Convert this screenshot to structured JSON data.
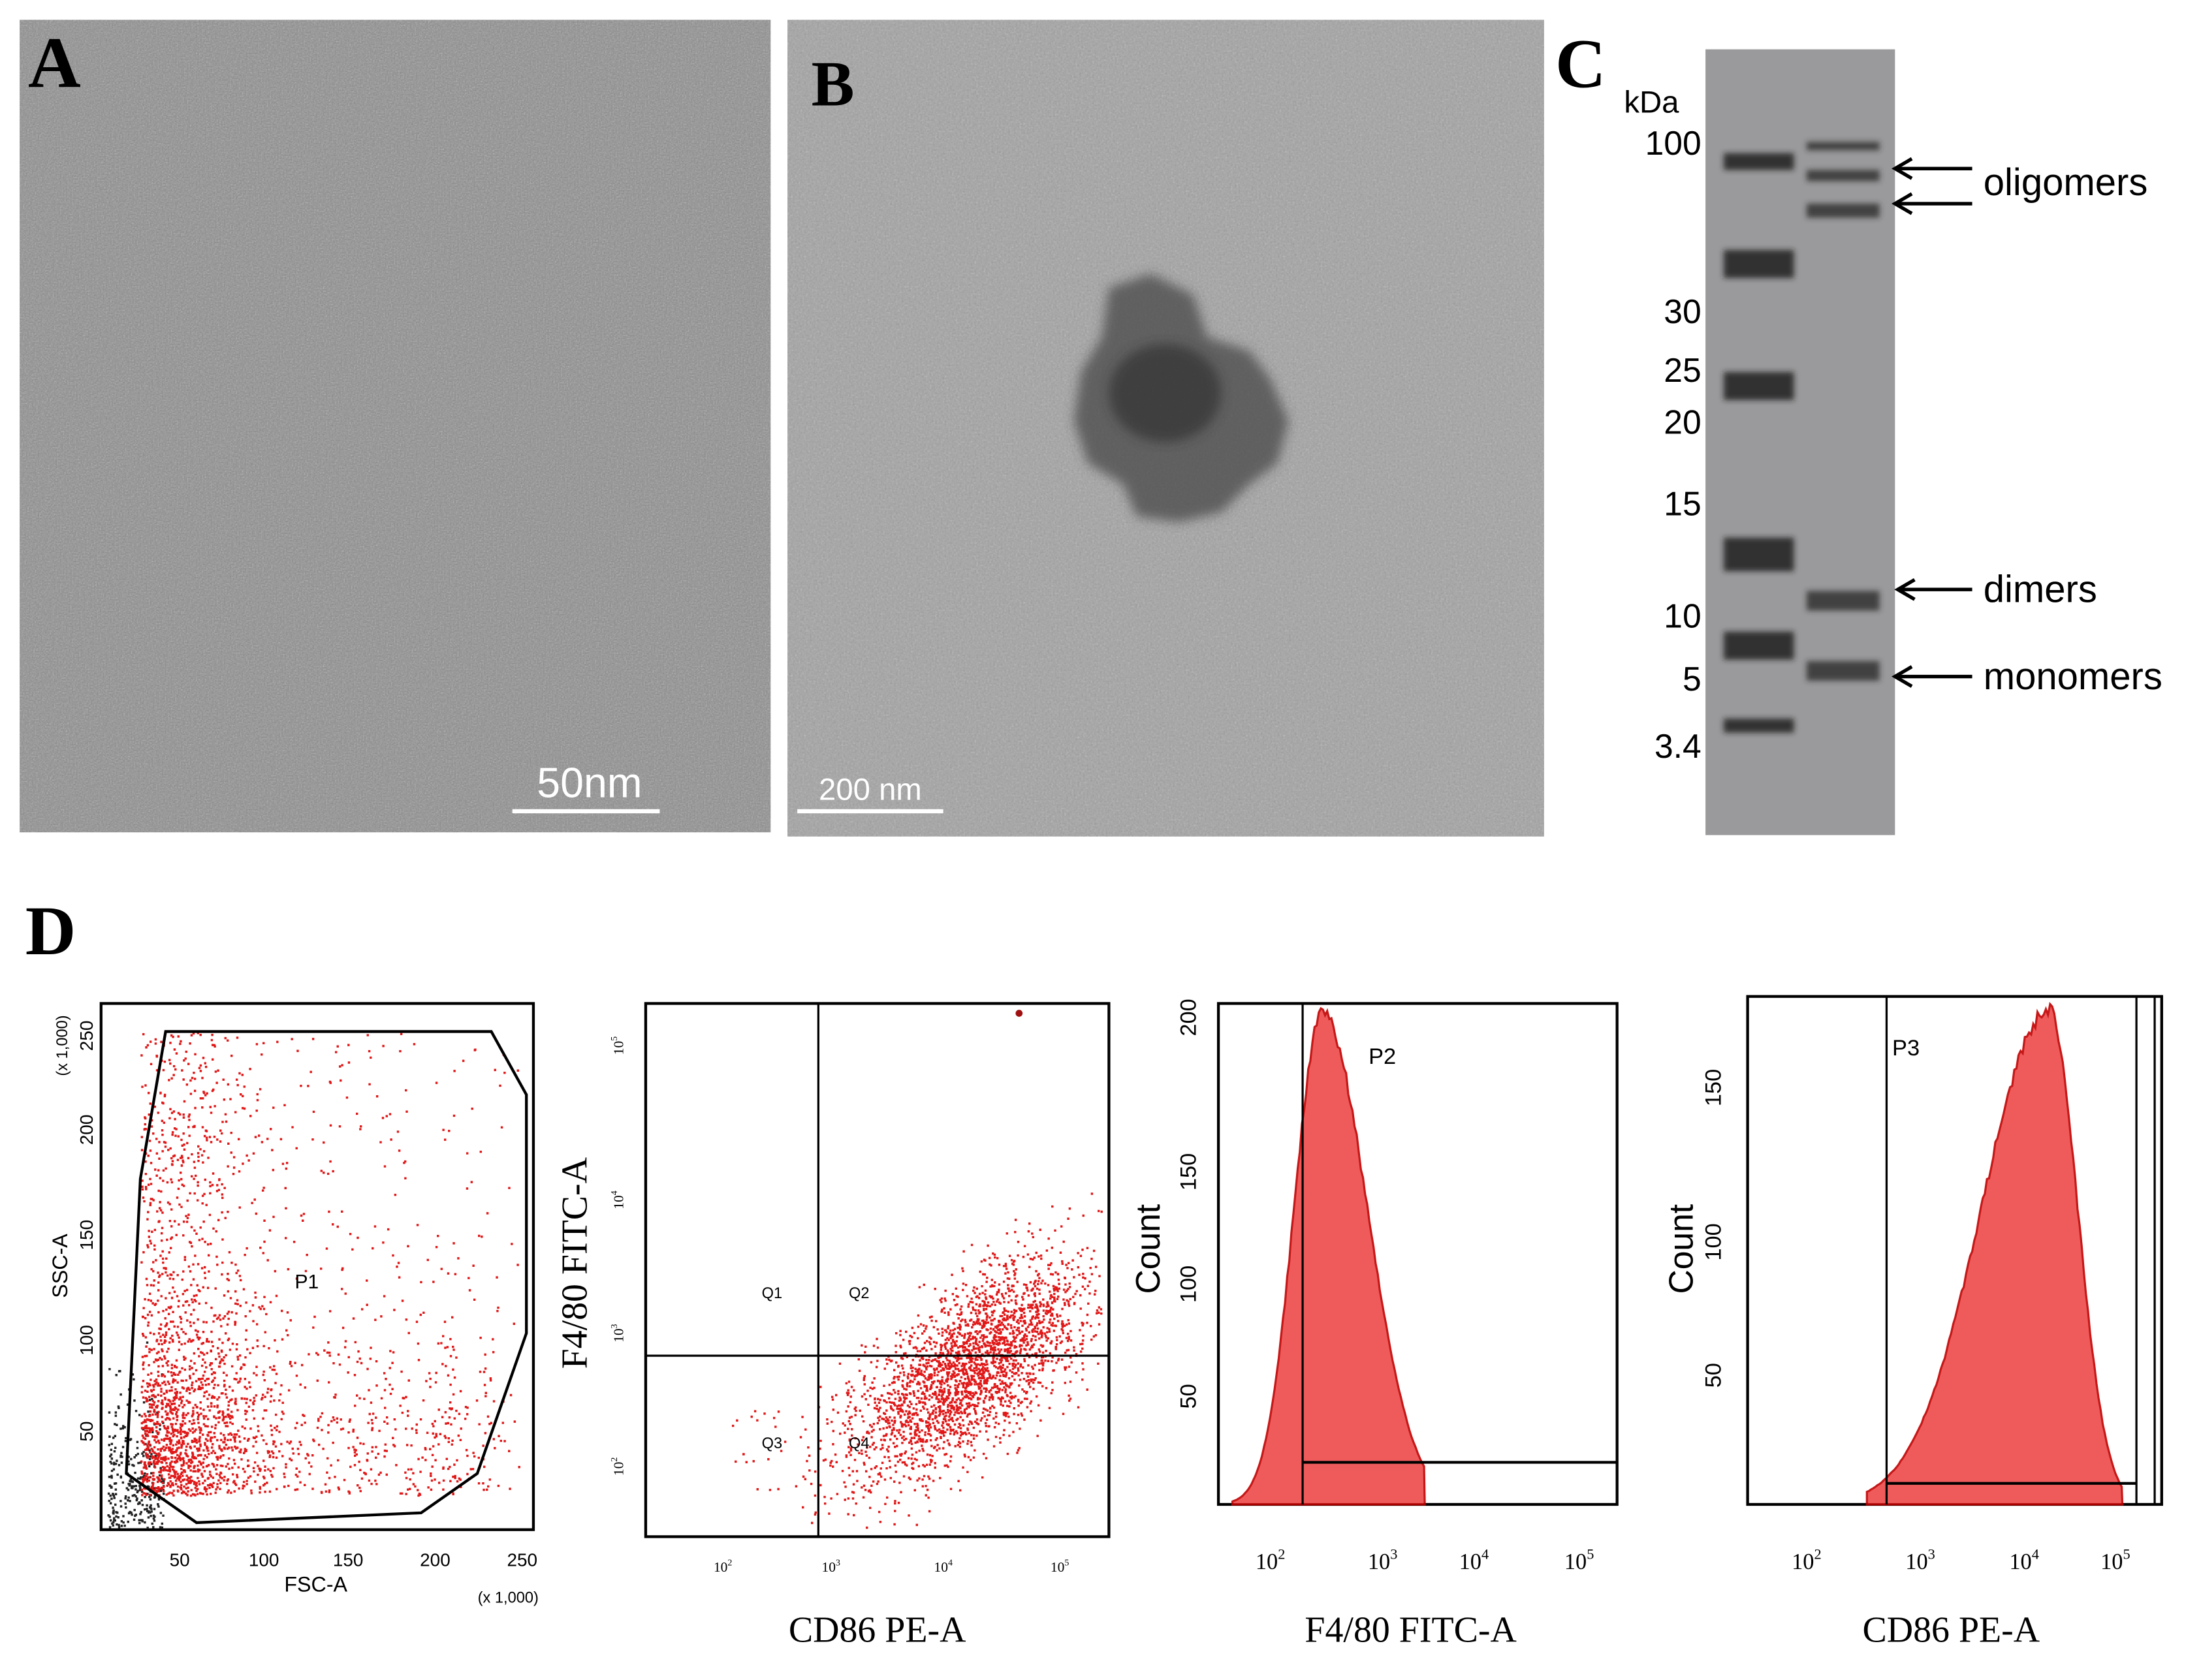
{
  "panel_a": {
    "label": "A",
    "scale_bar": "50nm"
  },
  "panel_b": {
    "label": "B",
    "scale_bar": "200 nm"
  },
  "panel_c": {
    "label": "C",
    "unit": "kDa",
    "markers": [
      "100",
      "30",
      "25",
      "20",
      "15",
      "10",
      "5",
      "3.4"
    ],
    "annotations": [
      "oligomers",
      "dimers",
      "monomers"
    ]
  },
  "panel_d": {
    "label": "D",
    "plots": [
      {
        "y_label": "SSC-A",
        "x_label": "FSC-A",
        "scale_note": "(x 1,000)",
        "gate": "P1",
        "x_ticks": [
          50,
          100,
          150,
          200,
          250
        ],
        "y_ticks": [
          50,
          100,
          150,
          200,
          250
        ]
      },
      {
        "y_label": "F4/80 FITC-A",
        "x_label": "CD86 PE-A",
        "quadrants": [
          "Q1",
          "Q2",
          "Q3",
          "Q4"
        ],
        "x_ticks": [
          {
            "base": 10,
            "exp": 2
          },
          {
            "base": 10,
            "exp": 3
          },
          {
            "base": 10,
            "exp": 4
          },
          {
            "base": 10,
            "exp": 5
          }
        ],
        "y_ticks": [
          {
            "base": 10,
            "exp": 2
          },
          {
            "base": 10,
            "exp": 3
          },
          {
            "base": 10,
            "exp": 4
          },
          {
            "base": 10,
            "exp": 5
          }
        ]
      },
      {
        "y_label": "Count",
        "x_label": "F4/80 FITC-A",
        "gate": "P2",
        "x_ticks": [
          {
            "base": 10,
            "exp": 2
          },
          {
            "base": 10,
            "exp": 3
          },
          {
            "base": 10,
            "exp": 4
          },
          {
            "base": 10,
            "exp": 5
          }
        ],
        "y_ticks": [
          50,
          100,
          150,
          200
        ]
      },
      {
        "y_label": "Count",
        "x_label": "CD86 PE-A",
        "gate": "P3",
        "x_ticks": [
          {
            "base": 10,
            "exp": 2
          },
          {
            "base": 10,
            "exp": 3
          },
          {
            "base": 10,
            "exp": 4
          },
          {
            "base": 10,
            "exp": 5
          }
        ],
        "y_ticks": [
          50,
          100,
          150
        ]
      }
    ]
  }
}
